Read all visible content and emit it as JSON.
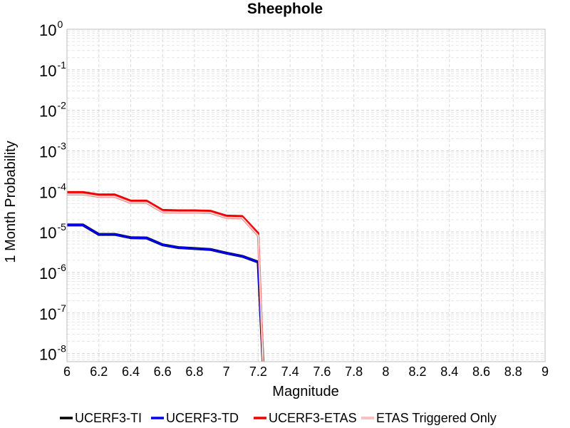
{
  "chart_data": {
    "type": "line",
    "title": "Sheephole",
    "xlabel": "Magnitude",
    "ylabel": "1 Month Probability",
    "xlim": [
      6,
      9
    ],
    "ylim": [
      6.3e-09,
      1
    ],
    "yscale": "log",
    "grid": true,
    "legend_position": "bottom",
    "x_ticks": [
      "6",
      "6.2",
      "6.4",
      "6.6",
      "6.8",
      "7",
      "7.2",
      "7.4",
      "7.6",
      "7.8",
      "8",
      "8.2",
      "8.4",
      "8.6",
      "8.8",
      "9"
    ],
    "y_ticks": [
      {
        "base": "10",
        "exp": "0",
        "value": 1
      },
      {
        "base": "10",
        "exp": "-1",
        "value": 0.1
      },
      {
        "base": "10",
        "exp": "-2",
        "value": 0.01
      },
      {
        "base": "10",
        "exp": "-3",
        "value": 0.001
      },
      {
        "base": "10",
        "exp": "-4",
        "value": 0.0001
      },
      {
        "base": "10",
        "exp": "-5",
        "value": 1e-05
      },
      {
        "base": "10",
        "exp": "-6",
        "value": 1e-06
      },
      {
        "base": "10",
        "exp": "-7",
        "value": 1e-07
      },
      {
        "base": "10",
        "exp": "-8",
        "value": 1e-08
      }
    ],
    "series": [
      {
        "name": "UCERF3-TI",
        "color": "#000000",
        "x": [
          6.0,
          6.1,
          6.2,
          6.3,
          6.4,
          6.5,
          6.6,
          6.7,
          6.8,
          6.9,
          7.0,
          7.1,
          7.2,
          7.23
        ],
        "y": [
          1.48e-05,
          1.48e-05,
          8.7e-06,
          8.7e-06,
          7.2e-06,
          7.1e-06,
          4.8e-06,
          4.1e-06,
          3.9e-06,
          3.7e-06,
          3e-06,
          2.5e-06,
          1.8e-06,
          6.3e-09
        ]
      },
      {
        "name": "UCERF3-TD",
        "color": "#0000ee",
        "x": [
          6.0,
          6.1,
          6.2,
          6.3,
          6.4,
          6.5,
          6.6,
          6.7,
          6.8,
          6.9,
          7.0,
          7.1,
          7.2,
          7.23
        ],
        "y": [
          1.48e-05,
          1.48e-05,
          8.7e-06,
          8.7e-06,
          7.2e-06,
          7.1e-06,
          4.8e-06,
          4.1e-06,
          3.9e-06,
          3.7e-06,
          3e-06,
          2.5e-06,
          1.8e-06,
          6.3e-09
        ]
      },
      {
        "name": "UCERF3-ETAS",
        "color": "#ee0000",
        "x": [
          6.0,
          6.1,
          6.2,
          6.3,
          6.4,
          6.5,
          6.6,
          6.7,
          6.8,
          6.9,
          7.0,
          7.1,
          7.2,
          7.23
        ],
        "y": [
          9.55e-05,
          9.55e-05,
          8.32e-05,
          8.32e-05,
          5.89e-05,
          5.89e-05,
          3.47e-05,
          3.39e-05,
          3.39e-05,
          3.31e-05,
          2.51e-05,
          2.45e-05,
          9.3e-06,
          6.3e-09
        ]
      },
      {
        "name": "ETAS Triggered Only",
        "color": "#f08080",
        "x": [
          6.0,
          6.1,
          6.2,
          6.3,
          6.4,
          6.5,
          6.6,
          6.7,
          6.8,
          6.9,
          7.0,
          7.1,
          7.2,
          7.23
        ],
        "y": [
          8.51e-05,
          8.51e-05,
          7.41e-05,
          7.41e-05,
          5.25e-05,
          5.25e-05,
          3.09e-05,
          3.02e-05,
          3.02e-05,
          2.95e-05,
          2.24e-05,
          2.19e-05,
          8.1e-06,
          6.3e-09
        ]
      }
    ]
  }
}
